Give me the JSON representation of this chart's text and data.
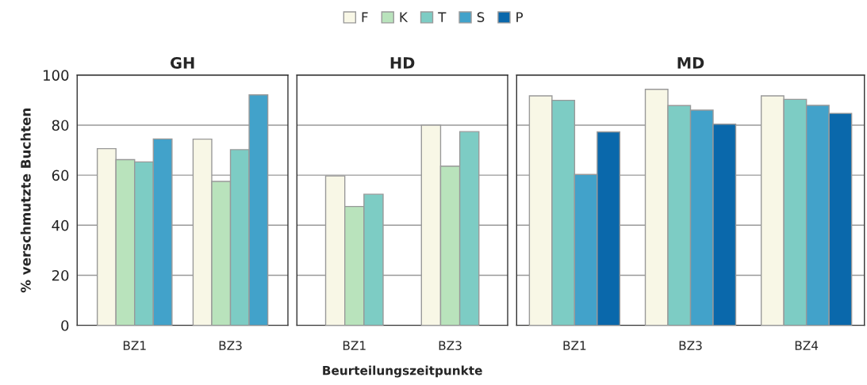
{
  "chart_data": [
    {
      "type": "bar",
      "title": "GH",
      "ylabel": "% verschmutzte Buchten",
      "categories": [
        "BZ1",
        "BZ3"
      ],
      "ylim": [
        0,
        100
      ],
      "yticks": [
        0,
        20,
        40,
        60,
        80,
        100
      ],
      "grid": "y",
      "legend": "top",
      "series": [
        {
          "name": "F",
          "color": "#f8f7e6",
          "values": [
            70.6,
            74.4
          ]
        },
        {
          "name": "K",
          "color": "#b9e3bc",
          "values": [
            66.2,
            57.5
          ]
        },
        {
          "name": "T",
          "color": "#7dccc4",
          "values": [
            65.3,
            70.2
          ]
        },
        {
          "name": "S",
          "color": "#42a2ca",
          "values": [
            74.5,
            92.1
          ]
        }
      ]
    },
    {
      "type": "bar",
      "title": "HD",
      "xlabel": "Beurteilungszeitpunkte",
      "categories": [
        "BZ1",
        "BZ3"
      ],
      "ylim": [
        0,
        100
      ],
      "yticks": [
        0,
        20,
        40,
        60,
        80,
        100
      ],
      "grid": "y",
      "tick_labels": "x",
      "series": [
        {
          "name": "F",
          "color": "#f8f7e6",
          "values": [
            59.7,
            80
          ]
        },
        {
          "name": "K",
          "color": "#b9e3bc",
          "values": [
            47.5,
            63.6
          ]
        },
        {
          "name": "T",
          "color": "#7dccc4",
          "values": [
            52.4,
            77.4
          ]
        }
      ]
    },
    {
      "type": "bar",
      "title": "MD",
      "categories": [
        "BZ1",
        "BZ3",
        "BZ4"
      ],
      "ylim": [
        0,
        100
      ],
      "yticks": [
        0,
        20,
        40,
        60,
        80,
        100
      ],
      "grid": "y",
      "tick_labels": "x",
      "series": [
        {
          "name": "F",
          "color": "#f8f7e6",
          "values": [
            91.7,
            94.3,
            91.7
          ]
        },
        {
          "name": "T",
          "color": "#7dccc4",
          "values": [
            89.9,
            87.8,
            90.3
          ]
        },
        {
          "name": "S",
          "color": "#42a2ca",
          "values": [
            60.3,
            86.0,
            87.9
          ]
        },
        {
          "name": "P",
          "color": "#0a68ab",
          "values": [
            77.3,
            80.4,
            84.7
          ]
        }
      ]
    }
  ]
}
